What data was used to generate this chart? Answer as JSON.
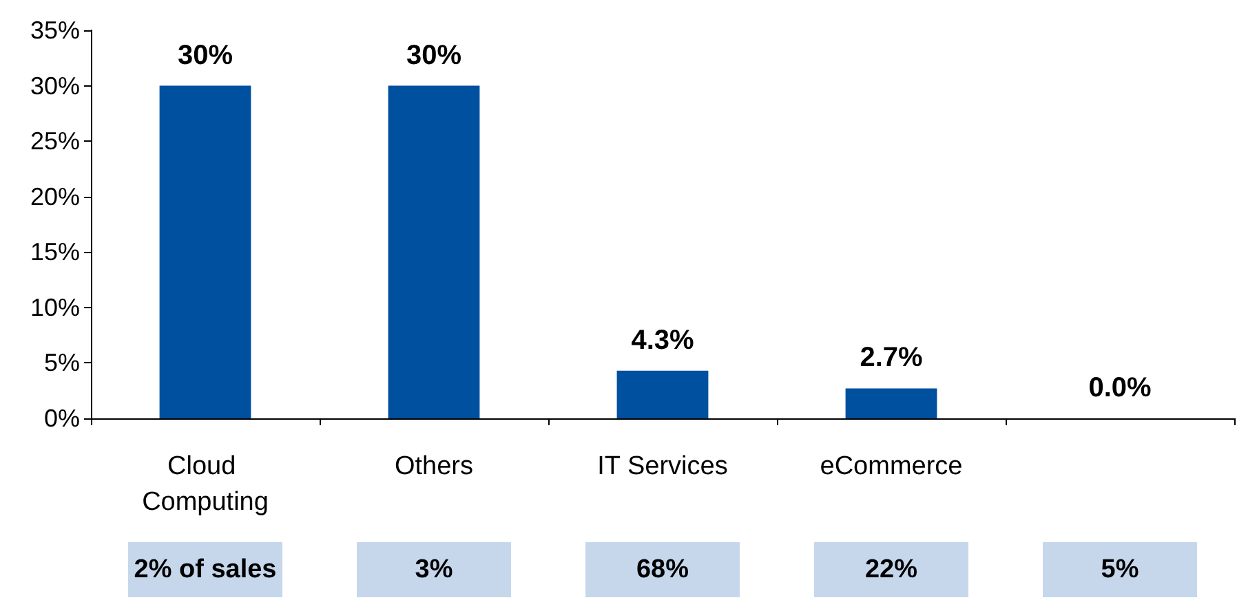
{
  "chart_data": {
    "type": "bar",
    "categories": [
      "Cloud Computing",
      "Others",
      "IT Services",
      "eCommerce",
      null
    ],
    "values": [
      30,
      30,
      4.3,
      2.7,
      0.0
    ],
    "color": "#0050a0",
    "value_labels": [
      "30%",
      "30%",
      "4.3%",
      "2.7%",
      "0.0%"
    ],
    "ylim": [
      0,
      35
    ],
    "yticks": [
      {
        "value": 0,
        "label": "0%"
      },
      {
        "value": 5,
        "label": "5%"
      },
      {
        "value": 10,
        "label": "10%"
      },
      {
        "value": 15,
        "label": "15%"
      },
      {
        "value": 20,
        "label": "20%"
      },
      {
        "value": 25,
        "label": "25%"
      },
      {
        "value": 30,
        "label": "30%"
      },
      {
        "value": 35,
        "label": "35%"
      }
    ],
    "grid": false,
    "annotations": [
      "2% of sales",
      "3%",
      "68%",
      "22%",
      "5%"
    ]
  }
}
